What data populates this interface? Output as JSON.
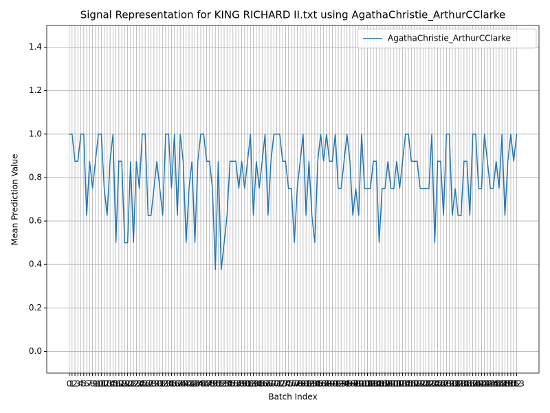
{
  "chart_data": {
    "type": "line",
    "title": "Signal Representation for KING RICHARD II.txt using AgathaChristie_ArthurCClarke",
    "xlabel": "Batch Index",
    "ylabel": "Mean Prediction Value",
    "x": [
      0,
      1,
      2,
      3,
      4,
      5,
      6,
      7,
      8,
      9,
      10,
      11,
      12,
      13,
      14,
      15,
      16,
      17,
      18,
      19,
      20,
      21,
      22,
      23,
      24,
      25,
      26,
      27,
      28,
      29,
      30,
      31,
      32,
      33,
      34,
      35,
      36,
      37,
      38,
      39,
      40,
      41,
      42,
      43,
      44,
      45,
      46,
      47,
      48,
      49,
      50,
      51,
      52,
      53,
      54,
      55,
      56,
      57,
      58,
      59,
      60,
      61,
      62,
      63,
      64,
      65,
      66,
      67,
      68,
      69,
      70,
      71,
      72,
      73,
      74,
      75,
      76,
      77,
      78,
      79,
      80,
      81,
      82,
      83,
      84,
      85,
      86,
      87,
      88,
      89,
      90,
      91,
      92,
      93,
      94,
      95,
      96,
      97,
      98,
      99,
      100,
      101,
      102,
      103,
      104,
      105,
      106,
      107,
      108,
      109,
      110,
      111,
      112,
      113,
      114,
      115,
      116,
      117,
      118,
      119,
      120,
      121,
      122,
      123,
      124,
      125,
      126,
      127,
      128,
      129,
      130,
      131,
      132,
      133,
      134,
      135,
      136,
      137,
      138,
      139,
      140,
      141,
      142,
      143,
      144,
      145,
      146,
      147,
      148,
      149,
      150,
      151,
      152,
      153
    ],
    "series": [
      {
        "name": "AgathaChristie_ArthurCClarke",
        "color": "#1f77b4",
        "values": [
          1.0,
          1.0,
          0.875,
          0.875,
          1.0,
          1.0,
          0.625,
          0.875,
          0.75,
          0.875,
          1.0,
          1.0,
          0.75,
          0.625,
          0.875,
          1.0,
          0.5,
          0.875,
          0.875,
          0.5,
          0.5,
          0.875,
          0.5,
          0.875,
          0.75,
          1.0,
          1.0,
          0.625,
          0.625,
          0.75,
          0.875,
          0.75,
          0.625,
          1.0,
          1.0,
          0.75,
          1.0,
          0.625,
          1.0,
          0.875,
          0.5,
          0.75,
          0.875,
          0.5,
          0.875,
          1.0,
          1.0,
          0.875,
          0.875,
          0.75,
          0.375,
          0.875,
          0.375,
          0.5,
          0.625,
          0.875,
          0.875,
          0.875,
          0.75,
          0.875,
          0.75,
          0.875,
          1.0,
          0.625,
          0.875,
          0.75,
          0.875,
          1.0,
          0.625,
          0.875,
          1.0,
          1.0,
          1.0,
          0.875,
          0.875,
          0.75,
          0.75,
          0.5,
          0.75,
          0.875,
          1.0,
          0.625,
          0.875,
          0.625,
          0.5,
          0.875,
          1.0,
          0.875,
          1.0,
          0.875,
          0.875,
          1.0,
          0.75,
          0.75,
          0.875,
          1.0,
          0.875,
          0.625,
          0.75,
          0.625,
          1.0,
          0.75,
          0.75,
          0.75,
          0.875,
          0.875,
          0.5,
          0.75,
          0.75,
          0.875,
          0.75,
          0.75,
          0.875,
          0.75,
          0.875,
          1.0,
          1.0,
          0.875,
          0.875,
          0.875,
          0.75,
          0.75,
          0.75,
          0.75,
          1.0,
          0.5,
          0.875,
          0.875,
          0.625,
          1.0,
          1.0,
          0.625,
          0.75,
          0.625,
          0.625,
          0.875,
          0.875,
          0.625,
          1.0,
          1.0,
          0.75,
          0.75,
          1.0,
          0.875,
          0.75,
          0.75,
          0.875,
          0.75,
          1.0,
          0.625,
          0.875,
          1.0,
          0.875,
          1.0
        ]
      }
    ],
    "xlim": [
      -7.65,
      160.65
    ],
    "xticks": [
      0,
      1,
      2,
      3,
      4,
      5,
      6,
      7,
      8,
      9,
      10,
      11,
      12,
      13,
      14,
      15,
      16,
      17,
      18,
      19,
      20,
      21,
      22,
      23,
      24,
      25,
      26,
      27,
      28,
      29,
      30,
      31,
      32,
      33,
      34,
      35,
      36,
      37,
      38,
      39,
      40,
      41,
      42,
      43,
      44,
      45,
      46,
      47,
      48,
      49,
      50,
      51,
      52,
      53,
      54,
      55,
      56,
      57,
      58,
      59,
      60,
      61,
      62,
      63,
      64,
      65,
      66,
      67,
      68,
      69,
      70,
      71,
      72,
      73,
      74,
      75,
      76,
      77,
      78,
      79,
      80,
      81,
      82,
      83,
      84,
      85,
      86,
      87,
      88,
      89,
      90,
      91,
      92,
      93,
      94,
      95,
      96,
      97,
      98,
      99,
      100,
      101,
      102,
      103,
      104,
      105,
      106,
      107,
      108,
      109,
      110,
      111,
      112,
      113,
      114,
      115,
      116,
      117,
      118,
      119,
      120,
      121,
      122,
      123,
      124,
      125,
      126,
      127,
      128,
      129,
      130,
      131,
      132,
      133,
      134,
      135,
      136,
      137,
      138,
      139,
      140,
      141,
      142,
      143,
      144,
      145,
      146,
      147,
      148,
      149,
      150,
      151,
      152,
      153
    ],
    "ylim": [
      -0.1,
      1.5
    ],
    "yticks": [
      {
        "value": 0,
        "label": "0.0"
      },
      0.2,
      0.4,
      0.6,
      0.8,
      {
        "value": 1,
        "label": "1.0"
      },
      1.2,
      1.4
    ],
    "grid": true,
    "legend": "upper right"
  }
}
